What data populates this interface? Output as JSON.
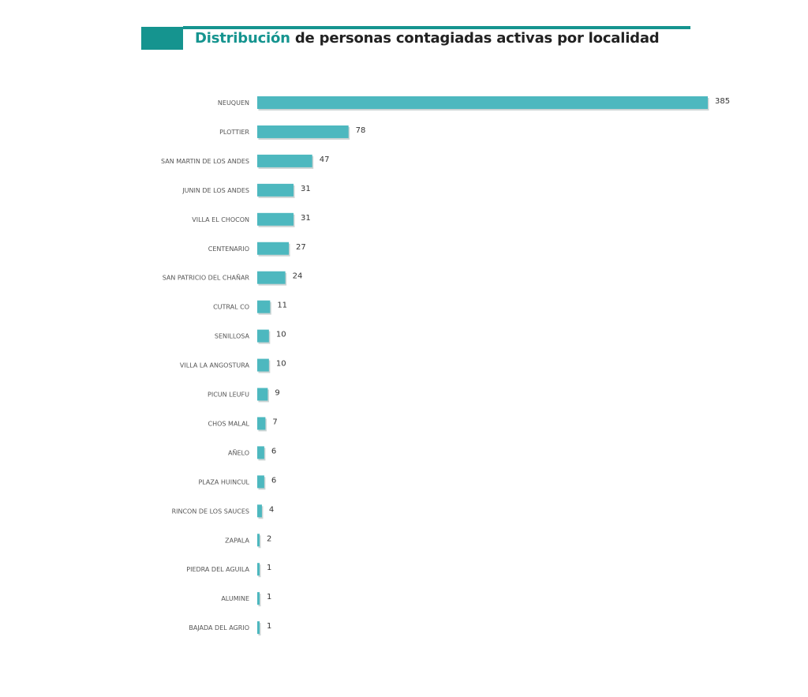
{
  "chart_data": {
    "type": "bar",
    "orientation": "horizontal",
    "title_highlight": "Distribución",
    "title_rest": "de personas contagiadas activas por localidad",
    "categories": [
      "NEUQUEN",
      "PLOTTIER",
      "SAN MARTIN DE LOS ANDES",
      "JUNIN DE LOS ANDES",
      "VILLA EL CHOCON",
      "CENTENARIO",
      "SAN PATRICIO DEL CHAÑAR",
      "CUTRAL CO",
      "SENILLOSA",
      "VILLA LA ANGOSTURA",
      "PICUN LEUFU",
      "CHOS MALAL",
      "AÑELO",
      "PLAZA HUINCUL",
      "RINCON DE LOS SAUCES",
      "ZAPALA",
      "PIEDRA DEL AGUILA",
      "ALUMINE",
      "BAJADA DEL AGRIO"
    ],
    "values": [
      385,
      78,
      47,
      31,
      31,
      27,
      24,
      11,
      10,
      10,
      9,
      7,
      6,
      6,
      4,
      2,
      1,
      1,
      1
    ],
    "data_labels": true,
    "grid": false,
    "bar_color": "#4db8bf",
    "accent_color": "#15948f"
  }
}
